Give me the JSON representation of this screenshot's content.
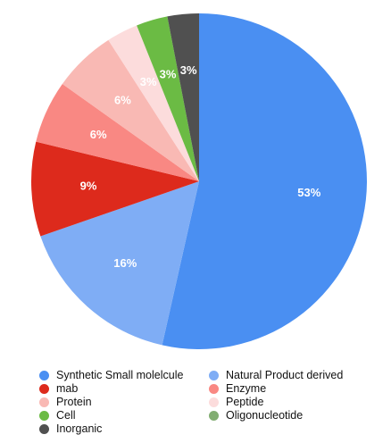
{
  "chart_data": {
    "type": "pie",
    "categories": [
      "Synthetic Small molelcule",
      "Natural Product derived",
      "mab",
      "Enzyme",
      "Protein",
      "Peptide",
      "Cell",
      "Oligonucleotide",
      "Inorganic"
    ],
    "values": [
      53,
      16,
      9,
      6,
      6,
      3,
      3,
      0,
      3
    ],
    "value_labels": [
      "53%",
      "16%",
      "9%",
      "6%",
      "6%",
      "3%",
      "3%",
      "",
      "3%"
    ],
    "colors": [
      "#4a8ff2",
      "#7fadf5",
      "#dd2a1c",
      "#f98883",
      "#f9b9b4",
      "#fcdcdc",
      "#6bbb44",
      "#82ad72",
      "#505050"
    ],
    "legend_placement": "bottom"
  }
}
